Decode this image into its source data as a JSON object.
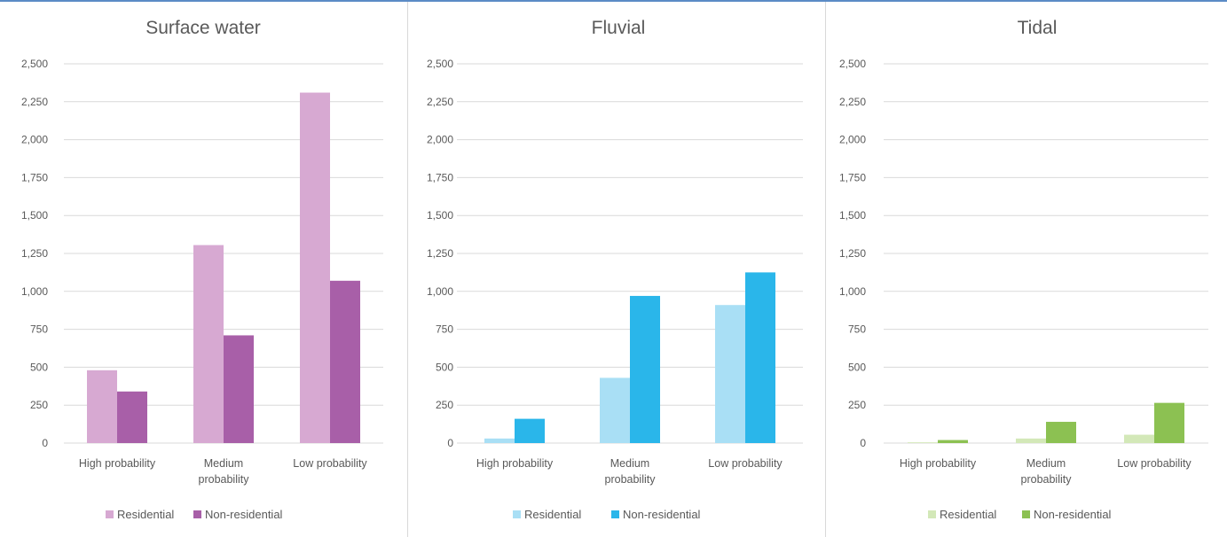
{
  "chart_data": [
    {
      "type": "bar",
      "title": "Surface water",
      "categories": [
        [
          "High probability"
        ],
        [
          "Medium",
          "probability"
        ],
        [
          "Low probability"
        ]
      ],
      "ylim": [
        0,
        2500
      ],
      "yticks": [
        "0",
        "250",
        "500",
        "750",
        "1,000",
        "1,250",
        "1,500",
        "1,750",
        "2,000",
        "2,250",
        "2,500"
      ],
      "grid": true,
      "legend_position": "bottom",
      "series": [
        {
          "name": "Residential",
          "color": "#d7a9d2",
          "values": [
            480,
            1305,
            2310
          ]
        },
        {
          "name": "Non-residential",
          "color": "#a85fa8",
          "values": [
            340,
            710,
            1070
          ]
        }
      ]
    },
    {
      "type": "bar",
      "title": "Fluvial",
      "categories": [
        [
          "High probability"
        ],
        [
          "Medium",
          "probability"
        ],
        [
          "Low probability"
        ]
      ],
      "ylim": [
        0,
        2500
      ],
      "yticks": [
        "0",
        "250",
        "500",
        "750",
        "1,000",
        "1,250",
        "1,500",
        "1,750",
        "2,000",
        "2,250",
        "2,500"
      ],
      "grid": true,
      "legend_position": "bottom",
      "series": [
        {
          "name": "Residential",
          "color": "#a9dff5",
          "values": [
            30,
            430,
            910
          ]
        },
        {
          "name": "Non-residential",
          "color": "#2ab6ea",
          "values": [
            160,
            970,
            1125
          ]
        }
      ]
    },
    {
      "type": "bar",
      "title": "Tidal",
      "categories": [
        [
          "High probability"
        ],
        [
          "Medium",
          "probability"
        ],
        [
          "Low probability"
        ]
      ],
      "ylim": [
        0,
        2500
      ],
      "yticks": [
        "0",
        "250",
        "500",
        "750",
        "1,000",
        "1,250",
        "1,500",
        "1,750",
        "2,000",
        "2,250",
        "2,500"
      ],
      "grid": true,
      "legend_position": "bottom",
      "series": [
        {
          "name": "Residential",
          "color": "#d3e8b8",
          "values": [
            5,
            30,
            55
          ]
        },
        {
          "name": "Non-residential",
          "color": "#8cc152",
          "values": [
            20,
            140,
            265
          ]
        }
      ]
    }
  ]
}
